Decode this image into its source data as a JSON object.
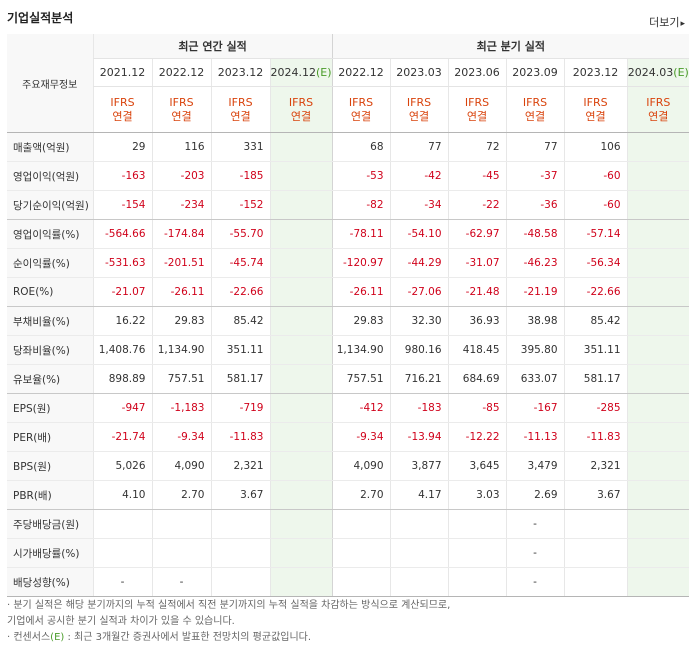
{
  "header": {
    "title": "기업실적분석",
    "more_label": "더보기",
    "more_arrow": "▸"
  },
  "table": {
    "corner_label": "주요재무정보",
    "annual_group_label": "최근 연간 실적",
    "quarter_group_label": "최근 분기 실적",
    "annual_periods": [
      {
        "label": "2021.12",
        "est": false
      },
      {
        "label": "2022.12",
        "est": false
      },
      {
        "label": "2023.12",
        "est": false
      },
      {
        "label": "2024.12",
        "est": true
      }
    ],
    "quarter_periods": [
      {
        "label": "2022.12",
        "est": false
      },
      {
        "label": "2023.03",
        "est": false
      },
      {
        "label": "2023.06",
        "est": false
      },
      {
        "label": "2023.09",
        "est": false
      },
      {
        "label": "2023.12",
        "est": false
      },
      {
        "label": "2024.03",
        "est": true
      }
    ],
    "est_marker": "(E)",
    "ifrs_line1": "IFRS",
    "ifrs_line2": "연결",
    "rows": [
      {
        "label": "매출액(억원)",
        "values": [
          "29",
          "116",
          "331",
          "",
          "68",
          "77",
          "72",
          "77",
          "106",
          ""
        ],
        "group_end": false
      },
      {
        "label": "영업이익(억원)",
        "values": [
          "-163",
          "-203",
          "-185",
          "",
          "-53",
          "-42",
          "-45",
          "-37",
          "-60",
          ""
        ],
        "group_end": false
      },
      {
        "label": "당기순이익(억원)",
        "values": [
          "-154",
          "-234",
          "-152",
          "",
          "-82",
          "-34",
          "-22",
          "-36",
          "-60",
          ""
        ],
        "group_end": true
      },
      {
        "label": "영업이익률(%)",
        "values": [
          "-564.66",
          "-174.84",
          "-55.70",
          "",
          "-78.11",
          "-54.10",
          "-62.97",
          "-48.58",
          "-57.14",
          ""
        ],
        "group_end": false
      },
      {
        "label": "순이익률(%)",
        "values": [
          "-531.63",
          "-201.51",
          "-45.74",
          "",
          "-120.97",
          "-44.29",
          "-31.07",
          "-46.23",
          "-56.34",
          ""
        ],
        "group_end": false
      },
      {
        "label": "ROE(%)",
        "values": [
          "-21.07",
          "-26.11",
          "-22.66",
          "",
          "-26.11",
          "-27.06",
          "-21.48",
          "-21.19",
          "-22.66",
          ""
        ],
        "group_end": true
      },
      {
        "label": "부채비율(%)",
        "values": [
          "16.22",
          "29.83",
          "85.42",
          "",
          "29.83",
          "32.30",
          "36.93",
          "38.98",
          "85.42",
          ""
        ],
        "group_end": false
      },
      {
        "label": "당좌비율(%)",
        "values": [
          "1,408.76",
          "1,134.90",
          "351.11",
          "",
          "1,134.90",
          "980.16",
          "418.45",
          "395.80",
          "351.11",
          ""
        ],
        "group_end": false
      },
      {
        "label": "유보율(%)",
        "values": [
          "898.89",
          "757.51",
          "581.17",
          "",
          "757.51",
          "716.21",
          "684.69",
          "633.07",
          "581.17",
          ""
        ],
        "group_end": true
      },
      {
        "label": "EPS(원)",
        "values": [
          "-947",
          "-1,183",
          "-719",
          "",
          "-412",
          "-183",
          "-85",
          "-167",
          "-285",
          ""
        ],
        "group_end": false
      },
      {
        "label": "PER(배)",
        "values": [
          "-21.74",
          "-9.34",
          "-11.83",
          "",
          "-9.34",
          "-13.94",
          "-12.22",
          "-11.13",
          "-11.83",
          ""
        ],
        "group_end": false
      },
      {
        "label": "BPS(원)",
        "values": [
          "5,026",
          "4,090",
          "2,321",
          "",
          "4,090",
          "3,877",
          "3,645",
          "3,479",
          "2,321",
          ""
        ],
        "group_end": false
      },
      {
        "label": "PBR(배)",
        "values": [
          "4.10",
          "2.70",
          "3.67",
          "",
          "2.70",
          "4.17",
          "3.03",
          "2.69",
          "3.67",
          ""
        ],
        "group_end": true
      },
      {
        "label": "주당배당금(원)",
        "values": [
          "",
          "",
          "",
          "",
          "",
          "",
          "",
          "-",
          "",
          ""
        ],
        "group_end": false
      },
      {
        "label": "시가배당률(%)",
        "values": [
          "",
          "",
          "",
          "",
          "",
          "",
          "",
          "-",
          "",
          ""
        ],
        "group_end": false
      },
      {
        "label": "배당성향(%)",
        "values": [
          "-",
          "-",
          "",
          "",
          "",
          "",
          "",
          "-",
          "",
          ""
        ],
        "group_end": false
      }
    ]
  },
  "notes": {
    "line1": "· 분기 실적은 해당 분기까지의 누적 실적에서 직전 분기까지의 누적 실적을 차감하는 방식으로 계산되므로,",
    "line2": "  기업에서 공시한 분기 실적과 차이가 있을 수 있습니다.",
    "line3_prefix": "· 컨센서스",
    "line3_marker": "(E)",
    "line3_suffix": " : 최근 3개월간 증권사에서 발표한 전망치의 평균값입니다."
  }
}
